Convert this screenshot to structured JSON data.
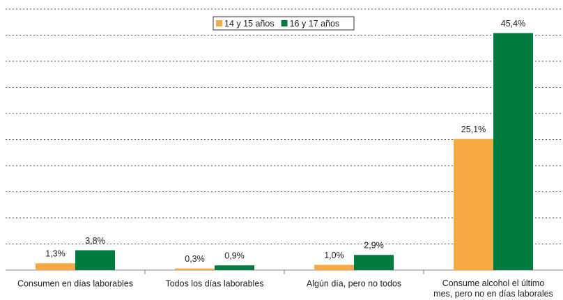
{
  "chart_data": {
    "type": "bar",
    "categories": [
      "Consumen en días laborables",
      "Todos los días laborables",
      "Algún día, pero no todos",
      "Consume alcohol el último\nmes, pero no en días laborales"
    ],
    "series": [
      {
        "name": "14 y 15 años",
        "color": "#f6a944",
        "values": [
          1.3,
          0.3,
          1.0,
          25.1
        ],
        "value_labels": [
          "1,3%",
          "0,3%",
          "1,0%",
          "25,1%"
        ]
      },
      {
        "name": "16 y 17 años",
        "color": "#007a3e",
        "values": [
          3.8,
          0.9,
          2.9,
          45.4
        ],
        "value_labels": [
          "3,8%",
          "0,9%",
          "2,9%",
          "45,4%"
        ]
      }
    ],
    "ylim": [
      0,
      50
    ],
    "yticks": [
      0,
      5,
      10,
      15,
      20,
      25,
      30,
      35,
      40,
      45,
      50
    ],
    "grid": true,
    "legend": "top"
  }
}
